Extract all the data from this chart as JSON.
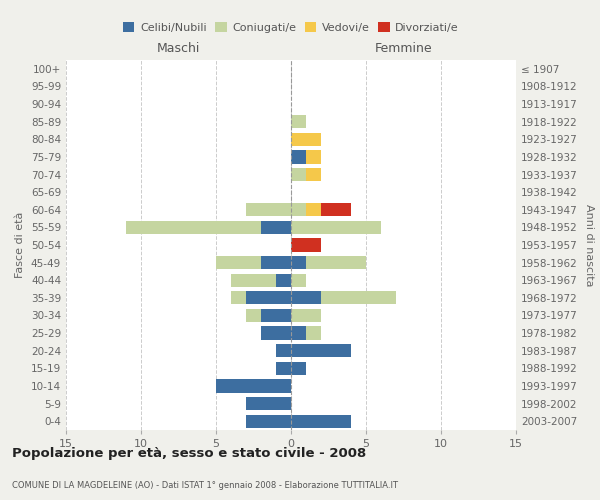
{
  "age_groups": [
    "0-4",
    "5-9",
    "10-14",
    "15-19",
    "20-24",
    "25-29",
    "30-34",
    "35-39",
    "40-44",
    "45-49",
    "50-54",
    "55-59",
    "60-64",
    "65-69",
    "70-74",
    "75-79",
    "80-84",
    "85-89",
    "90-94",
    "95-99",
    "100+"
  ],
  "birth_years": [
    "2003-2007",
    "1998-2002",
    "1993-1997",
    "1988-1992",
    "1983-1987",
    "1978-1982",
    "1973-1977",
    "1968-1972",
    "1963-1967",
    "1958-1962",
    "1953-1957",
    "1948-1952",
    "1943-1947",
    "1938-1942",
    "1933-1937",
    "1928-1932",
    "1923-1927",
    "1918-1922",
    "1913-1917",
    "1908-1912",
    "≤ 1907"
  ],
  "maschi": {
    "celibi": [
      3,
      3,
      5,
      1,
      1,
      2,
      2,
      3,
      1,
      2,
      0,
      2,
      0,
      0,
      0,
      0,
      0,
      0,
      0,
      0,
      0
    ],
    "coniugati": [
      0,
      0,
      0,
      0,
      0,
      0,
      1,
      1,
      3,
      3,
      0,
      9,
      3,
      0,
      0,
      0,
      0,
      0,
      0,
      0,
      0
    ],
    "vedovi": [
      0,
      0,
      0,
      0,
      0,
      0,
      0,
      0,
      0,
      0,
      0,
      0,
      0,
      0,
      0,
      0,
      0,
      0,
      0,
      0,
      0
    ],
    "divorziati": [
      0,
      0,
      0,
      0,
      0,
      0,
      0,
      0,
      0,
      0,
      0,
      0,
      0,
      0,
      0,
      0,
      0,
      0,
      0,
      0,
      0
    ]
  },
  "femmine": {
    "celibi": [
      4,
      0,
      0,
      1,
      4,
      1,
      0,
      2,
      0,
      1,
      0,
      0,
      0,
      0,
      0,
      1,
      0,
      0,
      0,
      0,
      0
    ],
    "coniugati": [
      0,
      0,
      0,
      0,
      0,
      1,
      2,
      5,
      1,
      4,
      0,
      6,
      1,
      0,
      1,
      0,
      0,
      1,
      0,
      0,
      0
    ],
    "vedovi": [
      0,
      0,
      0,
      0,
      0,
      0,
      0,
      0,
      0,
      0,
      0,
      0,
      1,
      0,
      1,
      1,
      2,
      0,
      0,
      0,
      0
    ],
    "divorziati": [
      0,
      0,
      0,
      0,
      0,
      0,
      0,
      0,
      0,
      0,
      2,
      0,
      2,
      0,
      0,
      0,
      0,
      0,
      0,
      0,
      0
    ]
  },
  "colors": {
    "celibi": "#3d6ea0",
    "coniugati": "#c5d5a0",
    "vedovi": "#f5c84a",
    "divorziati": "#d03020"
  },
  "xlim": 15,
  "title": "Popolazione per età, sesso e stato civile - 2008",
  "subtitle": "COMUNE DI LA MAGDELEINE (AO) - Dati ISTAT 1° gennaio 2008 - Elaborazione TUTTITALIA.IT",
  "ylabel_left": "Fasce di età",
  "ylabel_right": "Anni di nascita",
  "xlabel_left": "Maschi",
  "xlabel_right": "Femmine",
  "bg_color": "#f0f0eb",
  "plot_bg": "#ffffff"
}
